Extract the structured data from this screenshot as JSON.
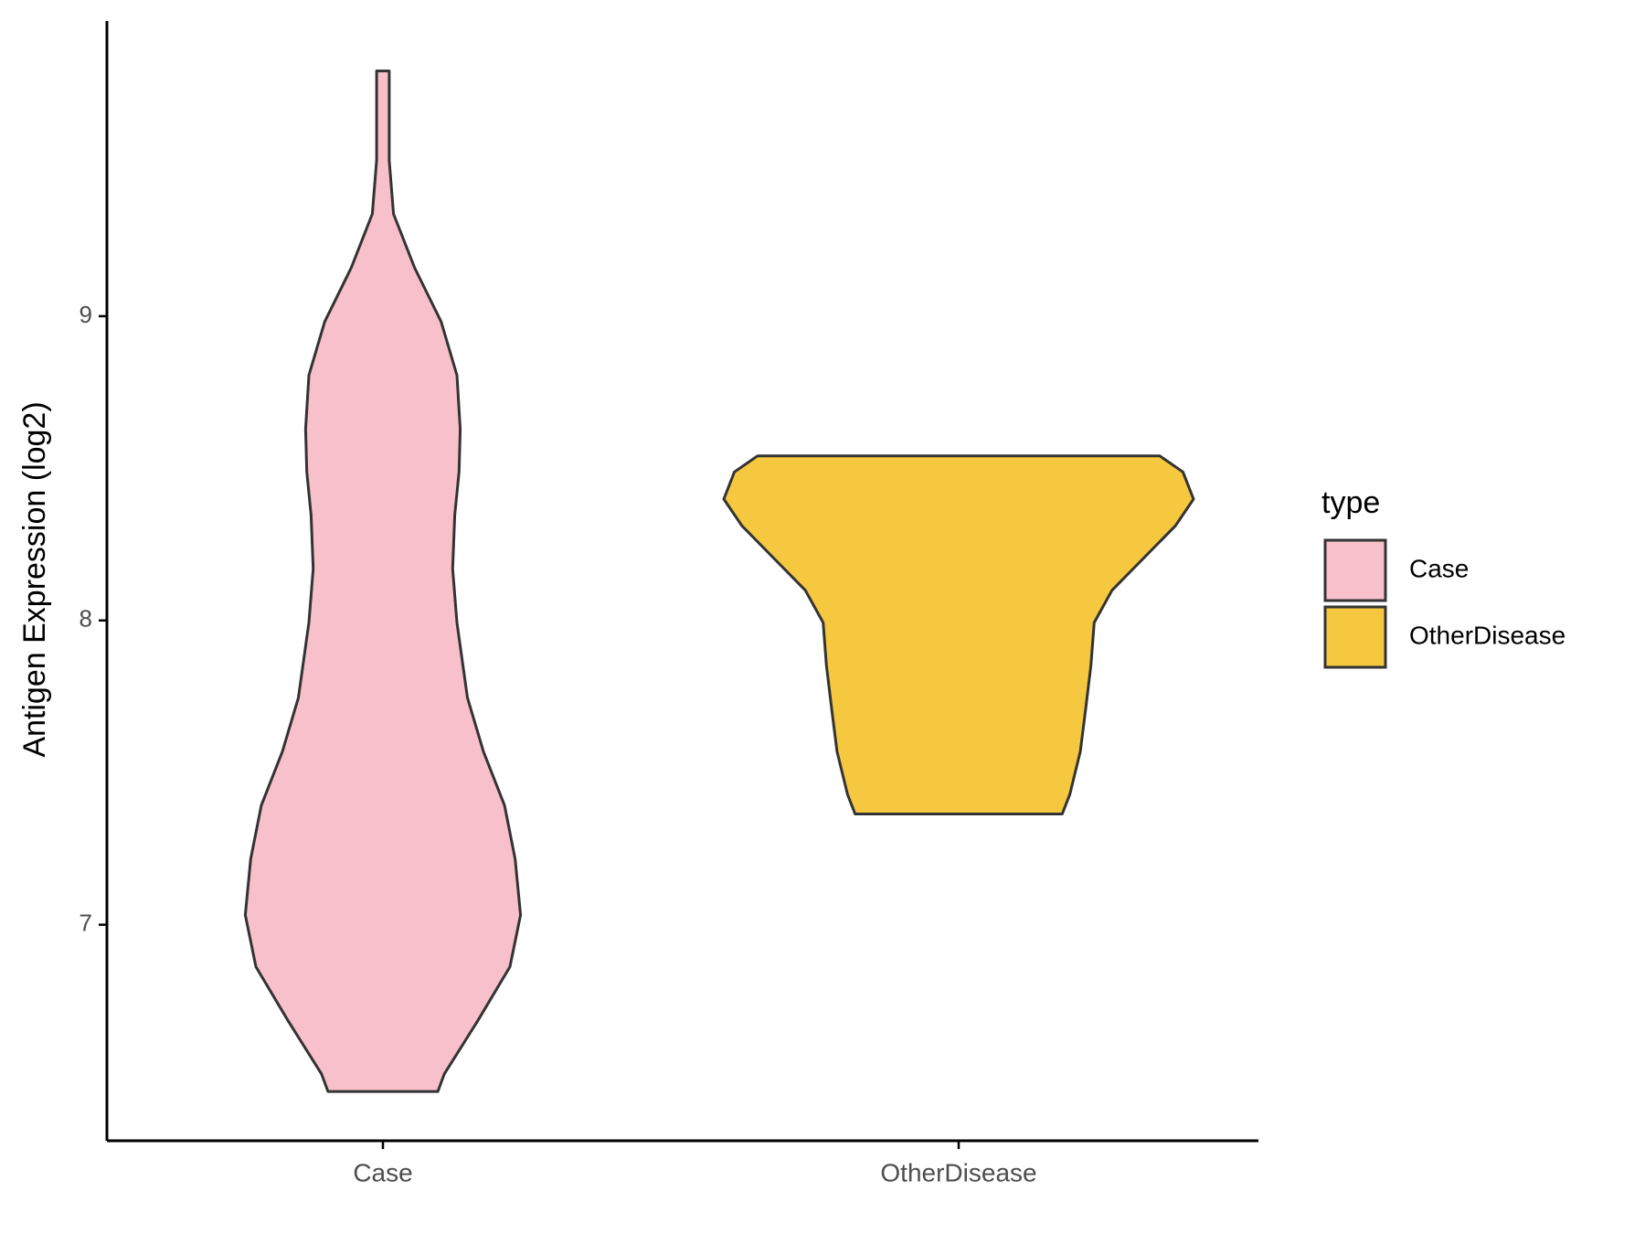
{
  "chart_data": {
    "type": "violin",
    "y_label": "Antigen Expression (log2)",
    "categories": [
      "Case",
      "OtherDisease"
    ],
    "ylim": [
      6.29,
      9.97
    ],
    "yticks": [
      7,
      8,
      9
    ],
    "legend_title": "type",
    "legend_position": "right",
    "series": [
      {
        "name": "Case",
        "color": "#f7c0cb",
        "y": [
          9.806,
          9.512,
          9.336,
          9.159,
          8.982,
          8.806,
          8.629,
          8.488,
          8.346,
          8.17,
          7.993,
          7.746,
          7.569,
          7.392,
          7.216,
          7.032,
          6.862,
          6.686,
          6.509,
          6.452
        ],
        "density": [
          0.027,
          0.027,
          0.045,
          0.135,
          0.248,
          0.315,
          0.329,
          0.324,
          0.306,
          0.297,
          0.315,
          0.36,
          0.428,
          0.518,
          0.563,
          0.586,
          0.541,
          0.405,
          0.261,
          0.234
        ]
      },
      {
        "name": "OtherDisease",
        "color": "#f5c840",
        "y": [
          8.541,
          8.488,
          8.399,
          8.311,
          8.205,
          8.099,
          7.993,
          7.852,
          7.71,
          7.569,
          7.428,
          7.364
        ],
        "density": [
          0.856,
          0.955,
          1,
          0.923,
          0.788,
          0.653,
          0.577,
          0.563,
          0.541,
          0.518,
          0.473,
          0.441
        ]
      }
    ]
  }
}
